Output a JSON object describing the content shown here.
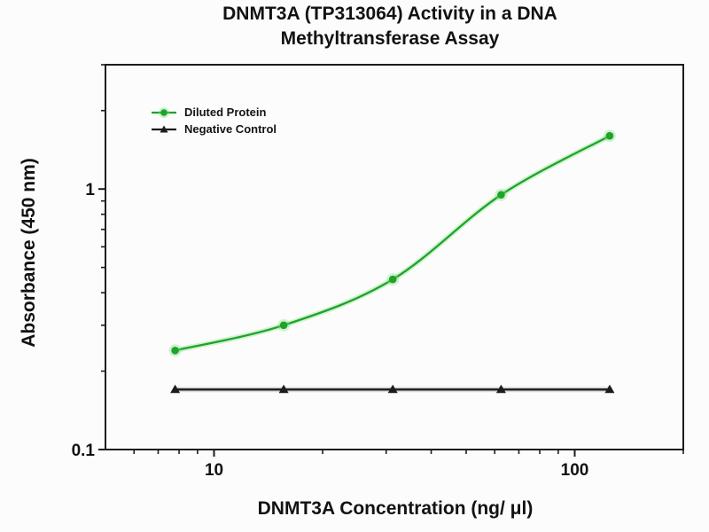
{
  "chart_data": {
    "type": "line",
    "title_line1": "DNMT3A (TP313064) Activity in a DNA",
    "title_line2": "Methyltransferase Assay",
    "xlabel": "DNMT3A Concentration (ng/ μl)",
    "ylabel": "Absorbance (450 nm)",
    "xscale": "log",
    "yscale": "log",
    "xlim": [
      5,
      200
    ],
    "ylim": [
      0.1,
      3
    ],
    "grid": false,
    "legend_position": "top-left",
    "frame_color": "#1c1c1c",
    "x_major_ticks": [
      {
        "v": 10,
        "label": "10"
      },
      {
        "v": 100,
        "label": "100"
      }
    ],
    "x_minor_ticks": [
      6,
      7,
      8,
      9,
      20,
      30,
      40,
      50,
      60,
      70,
      80,
      90,
      200
    ],
    "y_major_ticks": [
      {
        "v": 1,
        "label": "1"
      },
      {
        "v": 0.1,
        "label": "0.1"
      }
    ],
    "y_minor_ticks": [
      0.2,
      0.3,
      0.4,
      0.5,
      0.6,
      0.7,
      0.8,
      0.9,
      2,
      3
    ],
    "series": [
      {
        "name": "Diluted Protein",
        "color": "#1fa32b",
        "halo": "#7ddf7d",
        "marker": "circle",
        "smooth": true,
        "x": [
          7.8,
          15.6,
          31.3,
          62.5,
          125
        ],
        "y": [
          0.24,
          0.3,
          0.45,
          0.95,
          1.6
        ]
      },
      {
        "name": "Negative Control",
        "color": "#1c1c1c",
        "halo": "#9a9a9a",
        "marker": "triangle",
        "smooth": false,
        "x": [
          7.8,
          15.6,
          31.3,
          62.5,
          125
        ],
        "y": [
          0.17,
          0.17,
          0.17,
          0.17,
          0.17
        ]
      }
    ]
  }
}
